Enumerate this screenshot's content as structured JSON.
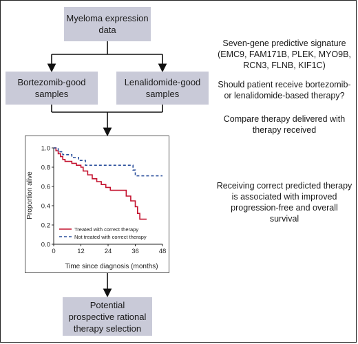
{
  "boxes": {
    "top": "Myeloma expression\ndata",
    "left": "Bortezomib-good\nsamples",
    "right": "Lenalidomide-good\nsamples",
    "bottom": "Potential\nprospective rational\ntherapy selection"
  },
  "notes": {
    "signature": "Seven-gene predictive signature\n(EMC9, FAM171B, PLEK, MYO9B,\nRCN3, FLNB, KIF1C)",
    "question": "Should patient receive bortezomib-\nor lenalidomide-based therapy?",
    "compare": "Compare therapy delivered with\ntherapy received",
    "conclusion": "Receiving correct predicted therapy\nis associated with improved\nprogression-free and overall\nsurvival"
  },
  "colors": {
    "box": "#c9cad8",
    "correct": "#c4122f",
    "not_correct": "#2a4f9c"
  },
  "chart_data": {
    "type": "line",
    "xlabel": "Time since diagnosis (months)",
    "ylabel": "Proportion alive",
    "xlim": [
      0,
      48
    ],
    "ylim": [
      0,
      1
    ],
    "xticks": [
      "0",
      "12",
      "24",
      "36",
      "48"
    ],
    "yticks": [
      "0.0",
      "0.2",
      "0.4",
      "0.6",
      "0.8",
      "1.0"
    ],
    "legend_placement": "bottom-right",
    "series": [
      {
        "name": "Treated with correct therapy",
        "color": "#c4122f",
        "dash": "solid",
        "steps": [
          [
            0,
            1.0
          ],
          [
            1,
            0.97
          ],
          [
            2,
            0.94
          ],
          [
            3,
            0.91
          ],
          [
            4,
            0.88
          ],
          [
            5,
            0.86
          ],
          [
            8,
            0.84
          ],
          [
            10,
            0.82
          ],
          [
            12,
            0.8
          ],
          [
            13,
            0.76
          ],
          [
            15,
            0.72
          ],
          [
            17,
            0.68
          ],
          [
            19,
            0.65
          ],
          [
            21,
            0.62
          ],
          [
            23,
            0.59
          ],
          [
            25,
            0.56
          ],
          [
            32,
            0.5
          ],
          [
            34,
            0.45
          ],
          [
            36,
            0.39
          ],
          [
            37,
            0.32
          ],
          [
            38,
            0.26
          ],
          [
            41,
            0.26
          ]
        ]
      },
      {
        "name": "Not treated with correct therapy",
        "color": "#2a4f9c",
        "dash": "dashed",
        "steps": [
          [
            0,
            1.0
          ],
          [
            2,
            0.96
          ],
          [
            4,
            0.93
          ],
          [
            8,
            0.9
          ],
          [
            11,
            0.87
          ],
          [
            14,
            0.82
          ],
          [
            33,
            0.82
          ],
          [
            35,
            0.77
          ],
          [
            36,
            0.71
          ],
          [
            48,
            0.71
          ]
        ]
      }
    ]
  }
}
